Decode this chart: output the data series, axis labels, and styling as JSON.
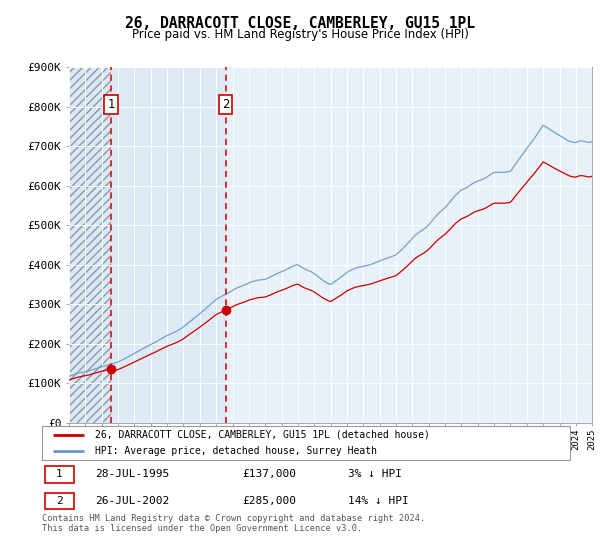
{
  "title": "26, DARRACOTT CLOSE, CAMBERLEY, GU15 1PL",
  "subtitle": "Price paid vs. HM Land Registry's House Price Index (HPI)",
  "ylim": [
    0,
    900000
  ],
  "yticks": [
    0,
    100000,
    200000,
    300000,
    400000,
    500000,
    600000,
    700000,
    800000,
    900000
  ],
  "ytick_labels": [
    "£0",
    "£100K",
    "£200K",
    "£300K",
    "£400K",
    "£500K",
    "£600K",
    "£700K",
    "£800K",
    "£900K"
  ],
  "sale1_year": 1995.577,
  "sale1_price": 137000,
  "sale2_year": 2002.577,
  "sale2_price": 285000,
  "hpi_line_color": "#6699cc",
  "price_line_color": "#cc0000",
  "vline_color": "#cc0000",
  "marker_color": "#cc0000",
  "hatch_fill_color": "#e8eef4",
  "shaded_fill_color": "#dce8f4",
  "legend_label1": "26, DARRACOTT CLOSE, CAMBERLEY, GU15 1PL (detached house)",
  "legend_label2": "HPI: Average price, detached house, Surrey Heath",
  "table_row1": [
    "1",
    "28-JUL-1995",
    "£137,000",
    "3% ↓ HPI"
  ],
  "table_row2": [
    "2",
    "26-JUL-2002",
    "£285,000",
    "14% ↓ HPI"
  ],
  "footer": "Contains HM Land Registry data © Crown copyright and database right 2024.\nThis data is licensed under the Open Government Licence v3.0.",
  "background_color": "#ffffff",
  "plot_bg_color": "#e8f0f8",
  "grid_color": "#ffffff",
  "xmin": 1993,
  "xmax": 2025
}
